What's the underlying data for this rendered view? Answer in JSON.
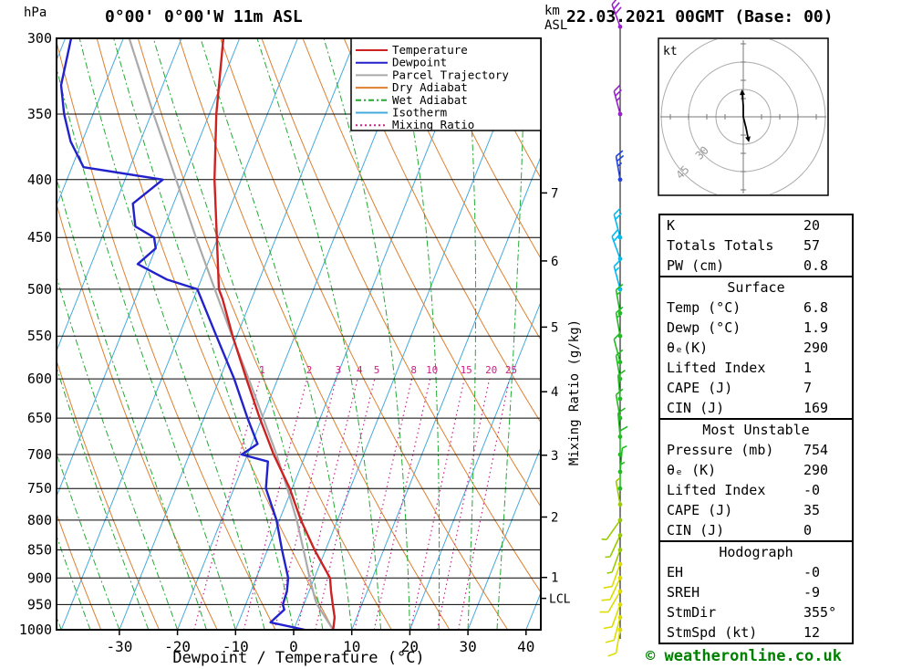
{
  "header": {
    "station_title": "0°00' 0°00'W 11m ASL",
    "date_title": "22.03.2021 00GMT (Base: 00)"
  },
  "axes": {
    "hpa_label": "hPa",
    "km_label": "km",
    "asl_label": "ASL",
    "xlabel": "Dewpoint / Temperature (°C)",
    "mixing_ratio_axis_label": "Mixing Ratio (g/kg)",
    "lcl_label": "LCL"
  },
  "legend": [
    {
      "key": "temperature",
      "label": "Temperature",
      "color": "#cc2222",
      "style": "solid"
    },
    {
      "key": "dewpoint",
      "label": "Dewpoint",
      "color": "#2222cc",
      "style": "solid"
    },
    {
      "key": "parcel",
      "label": "Parcel Trajectory",
      "color": "#aaaaaa",
      "style": "solid"
    },
    {
      "key": "dry_adiabat",
      "label": "Dry Adiabat",
      "color": "#dd8030",
      "style": "solid"
    },
    {
      "key": "wet_adiabat",
      "label": "Wet Adiabat",
      "color": "#22aa33",
      "style": "dashdot"
    },
    {
      "key": "isotherm",
      "label": "Isotherm",
      "color": "#44aadd",
      "style": "solid"
    },
    {
      "key": "mixing_ratio",
      "label": "Mixing Ratio",
      "color": "#cc2288",
      "style": "dotted"
    }
  ],
  "chart_data": {
    "type": "line",
    "projection": "skew-t log-p",
    "title": "0°00' 0°00'W 11m ASL",
    "xlabel": "Dewpoint / Temperature (°C)",
    "x_ticks": [
      -30,
      -20,
      -10,
      0,
      10,
      20,
      30,
      40
    ],
    "x_range": [
      -41,
      43
    ],
    "pressure_ticks": [
      300,
      350,
      400,
      450,
      500,
      550,
      600,
      650,
      700,
      750,
      800,
      850,
      900,
      950,
      1000
    ],
    "pressure_range": [
      300,
      1000
    ],
    "isotherm_step_c": 10,
    "dry_adiabat_step_k": 10,
    "wet_adiabat_step_c": 5,
    "mixing_ratio_lines": [
      1,
      2,
      3,
      4,
      5,
      8,
      10,
      15,
      20,
      25
    ],
    "km_ticks": [
      {
        "km": 1,
        "p": 899
      },
      {
        "km": 2,
        "p": 795
      },
      {
        "km": 3,
        "p": 701
      },
      {
        "km": 4,
        "p": 616
      },
      {
        "km": 5,
        "p": 540
      },
      {
        "km": 6,
        "p": 472
      },
      {
        "km": 7,
        "p": 411
      }
    ],
    "lcl_pressure": 938,
    "series": [
      {
        "name": "Temperature",
        "color": "#cc2222",
        "units": [
          "hPa",
          "°C"
        ],
        "points": [
          [
            1000,
            6.8
          ],
          [
            975,
            6.2
          ],
          [
            950,
            5.0
          ],
          [
            925,
            3.8
          ],
          [
            900,
            2.7
          ],
          [
            850,
            -1.9
          ],
          [
            800,
            -6.3
          ],
          [
            750,
            -10.4
          ],
          [
            700,
            -15.5
          ],
          [
            650,
            -20.4
          ],
          [
            600,
            -25.4
          ],
          [
            550,
            -30.7
          ],
          [
            510,
            -35.0
          ],
          [
            500,
            -36.3
          ],
          [
            450,
            -40.2
          ],
          [
            400,
            -44.6
          ],
          [
            350,
            -48.8
          ],
          [
            300,
            -52.8
          ]
        ]
      },
      {
        "name": "Dewpoint",
        "color": "#2222cc",
        "units": [
          "hPa",
          "°C"
        ],
        "points": [
          [
            1000,
            1.9
          ],
          [
            985,
            -4.5
          ],
          [
            960,
            -3.0
          ],
          [
            950,
            -3.6
          ],
          [
            925,
            -3.8
          ],
          [
            900,
            -4.5
          ],
          [
            850,
            -7.5
          ],
          [
            800,
            -10.5
          ],
          [
            750,
            -14.5
          ],
          [
            710,
            -16.0
          ],
          [
            700,
            -21.0
          ],
          [
            685,
            -19.0
          ],
          [
            650,
            -22.5
          ],
          [
            600,
            -27.5
          ],
          [
            550,
            -33.5
          ],
          [
            500,
            -40.0
          ],
          [
            490,
            -46.0
          ],
          [
            475,
            -52.0
          ],
          [
            460,
            -50.0
          ],
          [
            450,
            -51.0
          ],
          [
            440,
            -55.0
          ],
          [
            420,
            -57.0
          ],
          [
            400,
            -53.5
          ],
          [
            390,
            -68.0
          ],
          [
            370,
            -72.0
          ],
          [
            350,
            -75.0
          ],
          [
            330,
            -77.5
          ],
          [
            300,
            -79.0
          ]
        ]
      },
      {
        "name": "Parcel Trajectory",
        "color": "#aaaaaa",
        "units": [
          "hPa",
          "°C"
        ],
        "points": [
          [
            1000,
            6.8
          ],
          [
            950,
            2.3
          ],
          [
            938,
            1.5
          ],
          [
            900,
            -0.8
          ],
          [
            850,
            -3.8
          ],
          [
            800,
            -7.0
          ],
          [
            750,
            -10.8
          ],
          [
            700,
            -15.0
          ],
          [
            650,
            -19.8
          ],
          [
            600,
            -25.0
          ],
          [
            550,
            -30.8
          ],
          [
            500,
            -37.0
          ],
          [
            450,
            -43.8
          ],
          [
            400,
            -51.2
          ],
          [
            350,
            -59.6
          ],
          [
            300,
            -69.0
          ]
        ]
      }
    ]
  },
  "winds": [
    {
      "p": 293,
      "spd": 30,
      "dir": 340,
      "color": "#9922cc"
    },
    {
      "p": 350,
      "spd": 25,
      "dir": 345,
      "color": "#9922cc"
    },
    {
      "p": 400,
      "spd": 25,
      "dir": 350,
      "color": "#2244dd"
    },
    {
      "p": 450,
      "spd": 20,
      "dir": 345,
      "color": "#00bbee"
    },
    {
      "p": 470,
      "spd": 20,
      "dir": 340,
      "color": "#00bbee"
    },
    {
      "p": 500,
      "spd": 15,
      "dir": 345,
      "color": "#00bbee"
    },
    {
      "p": 525,
      "spd": 15,
      "dir": 350,
      "color": "#22bb22"
    },
    {
      "p": 550,
      "spd": 15,
      "dir": 350,
      "color": "#22bb22"
    },
    {
      "p": 580,
      "spd": 10,
      "dir": 345,
      "color": "#22bb22"
    },
    {
      "p": 600,
      "spd": 10,
      "dir": 350,
      "color": "#22bb22"
    },
    {
      "p": 625,
      "spd": 10,
      "dir": 355,
      "color": "#22bb22"
    },
    {
      "p": 650,
      "spd": 10,
      "dir": 350,
      "color": "#22bb22"
    },
    {
      "p": 675,
      "spd": 10,
      "dir": 355,
      "color": "#22bb22"
    },
    {
      "p": 700,
      "spd": 10,
      "dir": 0,
      "color": "#22bb22"
    },
    {
      "p": 725,
      "spd": 5,
      "dir": 5,
      "color": "#22bb22"
    },
    {
      "p": 750,
      "spd": 5,
      "dir": 0,
      "color": "#22bb22"
    },
    {
      "p": 775,
      "spd": 5,
      "dir": 350,
      "color": "#99cc00"
    },
    {
      "p": 800,
      "spd": 5,
      "dir": 215,
      "color": "#99cc00"
    },
    {
      "p": 825,
      "spd": 5,
      "dir": 205,
      "color": "#99cc00"
    },
    {
      "p": 850,
      "spd": 5,
      "dir": 200,
      "color": "#99cc00"
    },
    {
      "p": 875,
      "spd": 10,
      "dir": 200,
      "color": "#dddd00"
    },
    {
      "p": 900,
      "spd": 10,
      "dir": 205,
      "color": "#dddd00"
    },
    {
      "p": 925,
      "spd": 10,
      "dir": 210,
      "color": "#dddd00"
    },
    {
      "p": 950,
      "spd": 10,
      "dir": 200,
      "color": "#dddd00"
    },
    {
      "p": 975,
      "spd": 12,
      "dir": 195,
      "color": "#dddd00"
    },
    {
      "p": 1000,
      "spd": 12,
      "dir": 190,
      "color": "#dddd00"
    }
  ],
  "hodograph": {
    "unit_label": "kt",
    "rings_kt": [
      15,
      30,
      45
    ],
    "ring_labels": [
      {
        "value": "30",
        "r_kt": 30
      },
      {
        "value": "45",
        "r_kt": 45
      }
    ],
    "storm_motion": {
      "dir": "355°",
      "spd_kt": 12
    },
    "trace_uv_kt": [
      [
        -0.5,
        12
      ],
      [
        0,
        6
      ],
      [
        0,
        0
      ],
      [
        1.5,
        -6
      ],
      [
        2.5,
        -11
      ]
    ]
  },
  "table": {
    "sections": [
      {
        "header": null,
        "rows": [
          [
            "K",
            "20"
          ],
          [
            "Totals Totals",
            "57"
          ],
          [
            "PW (cm)",
            "0.8"
          ]
        ]
      },
      {
        "header": "Surface",
        "rows": [
          [
            "Temp (°C)",
            "6.8"
          ],
          [
            "Dewp (°C)",
            "1.9"
          ],
          [
            "θₑ(K)",
            "290"
          ],
          [
            "Lifted Index",
            "1"
          ],
          [
            "CAPE (J)",
            "7"
          ],
          [
            "CIN (J)",
            "169"
          ]
        ]
      },
      {
        "header": "Most Unstable",
        "rows": [
          [
            "Pressure (mb)",
            "754"
          ],
          [
            "θₑ (K)",
            "290"
          ],
          [
            "Lifted Index",
            "-0"
          ],
          [
            "CAPE (J)",
            "35"
          ],
          [
            "CIN (J)",
            "0"
          ]
        ]
      },
      {
        "header": "Hodograph",
        "rows": [
          [
            "EH",
            "-0"
          ],
          [
            "SREH",
            "-9"
          ],
          [
            "StmDir",
            "355°"
          ],
          [
            "StmSpd (kt)",
            "12"
          ]
        ]
      }
    ]
  },
  "footer": {
    "credit": "© weatheronline.co.uk"
  }
}
